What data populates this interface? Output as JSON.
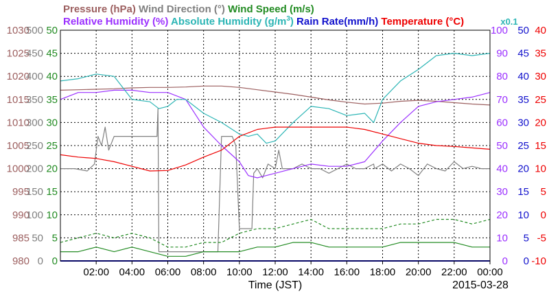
{
  "chart_data": {
    "type": "line",
    "xlabel": "Time (JST)",
    "date": "2015-03-28",
    "x_ticks": [
      "02:00",
      "04:00",
      "06:00",
      "08:00",
      "10:00",
      "12:00",
      "14:00",
      "16:00",
      "18:00",
      "20:00",
      "22:00",
      "00:00"
    ],
    "xlim_hours": [
      0,
      24
    ],
    "grid": true,
    "legend_row1": [
      {
        "text": "Pressure (hPa)",
        "color": "#9c5f5f"
      },
      {
        "text": "Wind Direction (°)",
        "color": "#808080"
      },
      {
        "text": "Wind Speed (m/s)",
        "color": "#228b22"
      }
    ],
    "legend_row2": [
      {
        "text": "Relative Humidity (%)",
        "color": "#9b30ff"
      },
      {
        "text": "Absolute Humidity (g/m",
        "sup": "3",
        "close": ")",
        "color": "#2cb5b5"
      },
      {
        "text": "Rain Rate(mm/h)",
        "color": "#1010cc"
      },
      {
        "text": "Temperature (°C)",
        "color": "#ee0000"
      }
    ],
    "rain_scale_note": {
      "text": "x0.1",
      "color": "#2cb5b5"
    },
    "axes": [
      {
        "name": "Pressure (hPa)",
        "side": "left",
        "color": "#9c5f5f",
        "range": [
          980,
          1030
        ],
        "ticks": [
          "1030",
          "1025",
          "1020",
          "1015",
          "1010",
          "1005",
          "1000",
          "995",
          "990",
          "985",
          "980"
        ]
      },
      {
        "name": "Wind Direction (°)",
        "side": "left",
        "color": "#808080",
        "range": [
          0,
          500
        ],
        "ticks": [
          "500",
          "450",
          "400",
          "350",
          "300",
          "250",
          "200",
          "150",
          "100",
          "50",
          "0"
        ]
      },
      {
        "name": "Wind Speed (m/s)",
        "side": "left",
        "color": "#228b22",
        "range": [
          0,
          50
        ],
        "ticks": [
          "50",
          "45",
          "40",
          "35",
          "30",
          "25",
          "20",
          "15",
          "10",
          "5",
          "0"
        ]
      },
      {
        "name": "Relative Humidity (%)",
        "side": "right",
        "color": "#9b30ff",
        "range": [
          0,
          100
        ],
        "ticks": [
          "100",
          "90",
          "80",
          "70",
          "60",
          "50",
          "40",
          "30",
          "20",
          "10",
          "0"
        ]
      },
      {
        "name": "Rain Rate(mm/h)",
        "side": "right",
        "color": "#1010cc",
        "range": [
          0,
          50
        ],
        "ticks": [
          "50",
          "45",
          "40",
          "35",
          "30",
          "25",
          "20",
          "15",
          "10",
          "5",
          "0"
        ]
      },
      {
        "name": "Temperature (°C)",
        "side": "right",
        "color": "#ee0000",
        "range": [
          -10,
          40
        ],
        "ticks": [
          "40",
          "35",
          "30",
          "25",
          "20",
          "15",
          "10",
          "5",
          "0",
          "-5",
          "-10"
        ]
      }
    ],
    "series": [
      {
        "name": "Pressure (hPa)",
        "color": "#9c5f5f",
        "axis_min": 980,
        "axis_max": 1030,
        "x": [
          0,
          1,
          2,
          3,
          4,
          5,
          6,
          7,
          8,
          9,
          10,
          11,
          12,
          13,
          14,
          15,
          16,
          17,
          18,
          19,
          20,
          21,
          22,
          23,
          24
        ],
        "y": [
          1017,
          1017.1,
          1017.2,
          1017.3,
          1017.5,
          1017.6,
          1017.6,
          1017.7,
          1017.9,
          1017.9,
          1017.6,
          1017.1,
          1016.6,
          1016.1,
          1015.5,
          1014.9,
          1014.4,
          1014,
          1014.2,
          1014.6,
          1014.8,
          1014.6,
          1014.3,
          1014,
          1013.8
        ]
      },
      {
        "name": "Wind Direction (°)",
        "color": "#808080",
        "axis_min": 0,
        "axis_max": 500,
        "x": [
          0,
          0.8,
          1.5,
          1.9,
          2.1,
          2.3,
          2.5,
          2.7,
          3.0,
          3.2,
          3.4,
          3.6,
          3.9,
          4.2,
          4.6,
          5.0,
          5.4,
          5.45,
          5.5,
          5.55,
          6.0,
          7.0,
          7.5,
          8.0,
          8.8,
          9.0,
          9.3,
          9.6,
          9.8,
          10.0,
          10.05,
          10.1,
          10.4,
          10.7,
          10.8,
          11.0,
          11.3,
          11.6,
          12.0,
          12.2,
          12.4,
          13.0,
          13.5,
          14.0,
          14.5,
          15.0,
          15.5,
          16.0,
          16.5,
          17.0,
          17.5,
          17.55,
          18.0,
          18.5,
          19.0,
          19.5,
          20.0,
          20.5,
          21.0,
          21.5,
          22.0,
          22.5,
          23.0,
          23.5,
          24.0
        ],
        "y": [
          200,
          200,
          195,
          210,
          270,
          250,
          290,
          240,
          270,
          270,
          270,
          270,
          270,
          270,
          270,
          270,
          270,
          330,
          20,
          20,
          20,
          20,
          20,
          20,
          20,
          270,
          270,
          270,
          250,
          70,
          70,
          70,
          70,
          70,
          190,
          200,
          180,
          210,
          200,
          240,
          200,
          200,
          210,
          200,
          200,
          190,
          200,
          210,
          200,
          200,
          210,
          200,
          210,
          195,
          210,
          200,
          185,
          210,
          200,
          195,
          215,
          200,
          205,
          200,
          200
        ]
      },
      {
        "name": "Wind Speed (m/s) max",
        "color": "#228b22",
        "dashed": true,
        "axis_min": 0,
        "axis_max": 50,
        "x": [
          0,
          1,
          2,
          3,
          4,
          5,
          6,
          7,
          8,
          9,
          10,
          11,
          12,
          13,
          14,
          15,
          16,
          17,
          18,
          19,
          20,
          21,
          22,
          23,
          24
        ],
        "y": [
          4,
          5,
          6,
          5,
          6,
          5,
          3,
          3,
          4,
          4,
          6,
          7,
          7,
          8,
          9,
          7,
          7,
          7,
          7,
          8,
          8,
          9,
          9,
          8,
          9
        ]
      },
      {
        "name": "Wind Speed (m/s)",
        "color": "#228b22",
        "axis_min": 0,
        "axis_max": 50,
        "x": [
          0,
          1,
          2,
          3,
          4,
          5,
          6,
          7,
          8,
          9,
          10,
          11,
          12,
          13,
          14,
          15,
          16,
          17,
          18,
          19,
          20,
          21,
          22,
          23,
          24
        ],
        "y": [
          2,
          2,
          3,
          2,
          3,
          2,
          1,
          1,
          2,
          2,
          2,
          3,
          3,
          4,
          4,
          3,
          3,
          3,
          3,
          4,
          4,
          4,
          4,
          3,
          3
        ]
      },
      {
        "name": "Relative Humidity (%)",
        "color": "#9b30ff",
        "axis_min": 0,
        "axis_max": 100,
        "x": [
          0,
          1,
          2,
          3,
          4,
          5,
          6,
          7,
          8,
          9,
          10,
          10.5,
          11,
          12,
          13,
          14,
          15,
          16,
          17,
          18,
          19,
          20,
          21,
          22,
          23,
          24
        ],
        "y": [
          70,
          73,
          73,
          74,
          74,
          73,
          73,
          70,
          58,
          50,
          43,
          37,
          36,
          38,
          40,
          42,
          41,
          41,
          43,
          52,
          60,
          67,
          69,
          70,
          71,
          73
        ]
      },
      {
        "name": "Absolute Humidity (g/m3)",
        "color": "#2cb5b5",
        "axis_min": 0,
        "axis_max": 100,
        "x": [
          0,
          1,
          2,
          3,
          3.5,
          4,
          5,
          5.5,
          6,
          6.5,
          7,
          7.5,
          8,
          9,
          10,
          10.5,
          11,
          11.5,
          12,
          13,
          14,
          15,
          16,
          17,
          17.5,
          18,
          19,
          20,
          21,
          22,
          23,
          24
        ],
        "y": [
          78,
          79,
          81,
          80,
          75,
          70,
          69,
          66,
          67,
          70,
          70,
          67,
          64,
          60,
          55,
          54,
          55,
          51,
          52,
          60,
          67,
          66,
          63,
          64,
          60,
          70,
          78,
          83,
          89,
          90,
          89,
          90
        ]
      },
      {
        "name": "Temperature (°C)",
        "color": "#ee0000",
        "axis_min": -10,
        "axis_max": 40,
        "x": [
          0,
          1,
          2,
          3,
          4,
          5,
          6,
          7,
          8,
          9,
          10,
          11,
          12,
          13,
          14,
          15,
          16,
          17,
          18,
          19,
          20,
          21,
          22,
          23,
          24
        ],
        "y": [
          13,
          12.5,
          12.2,
          11.5,
          10.5,
          9.5,
          9.6,
          10.8,
          12.5,
          14,
          17,
          18.5,
          19,
          19,
          19,
          19,
          19,
          18.5,
          17.5,
          16.5,
          15.5,
          15,
          14.8,
          14.5,
          14.2
        ]
      },
      {
        "name": "Rain Rate(mm/h)",
        "color": "#1010cc",
        "axis_min": 0,
        "axis_max": 50,
        "x": [
          0,
          24
        ],
        "y": [
          0,
          0
        ]
      }
    ]
  }
}
